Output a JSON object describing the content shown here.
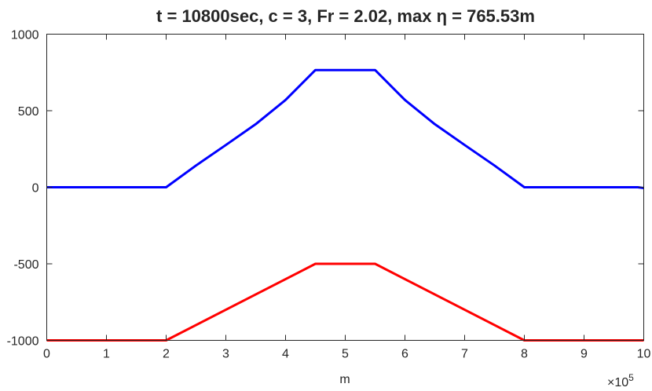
{
  "chart_data": {
    "type": "line",
    "title": "t = 10800sec, c = 3, Fr = 2.02, max η =  765.53m",
    "xlabel": "m",
    "ylabel": "",
    "x_exponent_label": "×10",
    "x_exponent_power": "5",
    "xlim": [
      0,
      10
    ],
    "ylim": [
      -1000,
      1000
    ],
    "x_ticks": [
      "0",
      "1",
      "2",
      "3",
      "4",
      "5",
      "6",
      "7",
      "8",
      "9",
      "10"
    ],
    "y_ticks": [
      "-1000",
      "-500",
      "0",
      "500",
      "1000"
    ],
    "grid": false,
    "series": [
      {
        "color": "#0000ff",
        "x": [
          0,
          2,
          2.5,
          3,
          3.5,
          4,
          4.5,
          5.5,
          6,
          6.5,
          7,
          7.5,
          8,
          9.9,
          10
        ],
        "y": [
          0,
          0,
          142,
          276,
          412,
          570,
          765.53,
          765.53,
          570,
          412,
          276,
          142,
          0,
          0,
          -5
        ]
      },
      {
        "color": "#ff0000",
        "x": [
          0,
          2,
          4.5,
          5.5,
          8,
          10
        ],
        "y": [
          -1000,
          -1000,
          -500,
          -500,
          -1000,
          -1000
        ]
      }
    ]
  }
}
